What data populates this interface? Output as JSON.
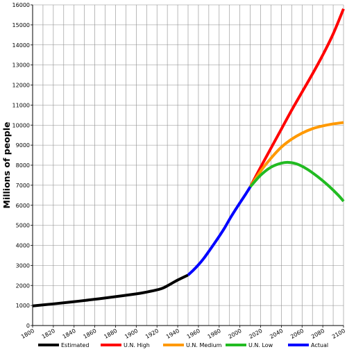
{
  "chart_data": {
    "type": "line",
    "title": "",
    "xlabel": "",
    "ylabel": "Millions of people",
    "xlim": [
      1800,
      2100
    ],
    "ylim": [
      0,
      16000
    ],
    "x_ticks": [
      1800,
      1820,
      1840,
      1860,
      1880,
      1900,
      1920,
      1940,
      1960,
      1980,
      2000,
      2020,
      2040,
      2060,
      2080,
      2100
    ],
    "y_ticks": [
      0,
      1000,
      2000,
      3000,
      4000,
      5000,
      6000,
      7000,
      8000,
      9000,
      10000,
      11000,
      12000,
      13000,
      14000,
      15000,
      16000
    ],
    "grid": true,
    "legend_position": "bottom",
    "series": [
      {
        "name": "Estimated",
        "color": "#000000",
        "points": [
          [
            1800,
            980
          ],
          [
            1820,
            1080
          ],
          [
            1840,
            1190
          ],
          [
            1860,
            1310
          ],
          [
            1880,
            1440
          ],
          [
            1900,
            1580
          ],
          [
            1910,
            1670
          ],
          [
            1920,
            1780
          ],
          [
            1927,
            1900
          ],
          [
            1940,
            2270
          ],
          [
            1950,
            2520
          ]
        ]
      },
      {
        "name": "Actual",
        "color": "#0000ff",
        "points": [
          [
            1950,
            2520
          ],
          [
            1955,
            2760
          ],
          [
            1960,
            3030
          ],
          [
            1965,
            3340
          ],
          [
            1970,
            3700
          ],
          [
            1975,
            4070
          ],
          [
            1980,
            4450
          ],
          [
            1985,
            4850
          ],
          [
            1990,
            5300
          ],
          [
            1995,
            5720
          ],
          [
            2000,
            6120
          ],
          [
            2005,
            6510
          ],
          [
            2010,
            6920
          ]
        ]
      },
      {
        "name": "U.N. High",
        "color": "#ff0000",
        "points": [
          [
            2010,
            6920
          ],
          [
            2020,
            7900
          ],
          [
            2030,
            8850
          ],
          [
            2040,
            9800
          ],
          [
            2050,
            10750
          ],
          [
            2060,
            11650
          ],
          [
            2070,
            12550
          ],
          [
            2080,
            13500
          ],
          [
            2090,
            14550
          ],
          [
            2100,
            15800
          ]
        ]
      },
      {
        "name": "U.N. Medium",
        "color": "#ff9900",
        "points": [
          [
            2010,
            6920
          ],
          [
            2020,
            7700
          ],
          [
            2030,
            8350
          ],
          [
            2040,
            8900
          ],
          [
            2050,
            9300
          ],
          [
            2060,
            9600
          ],
          [
            2070,
            9820
          ],
          [
            2080,
            9960
          ],
          [
            2090,
            10060
          ],
          [
            2100,
            10130
          ]
        ]
      },
      {
        "name": "U.N. Low",
        "color": "#22bb22",
        "points": [
          [
            2010,
            6920
          ],
          [
            2020,
            7500
          ],
          [
            2030,
            7900
          ],
          [
            2040,
            8100
          ],
          [
            2047,
            8140
          ],
          [
            2055,
            8060
          ],
          [
            2065,
            7800
          ],
          [
            2075,
            7430
          ],
          [
            2085,
            7000
          ],
          [
            2095,
            6500
          ],
          [
            2100,
            6200
          ]
        ]
      }
    ],
    "legend_order": [
      "Estimated",
      "U.N. High",
      "U.N. Medium",
      "U.N. Low",
      "Actual"
    ]
  }
}
